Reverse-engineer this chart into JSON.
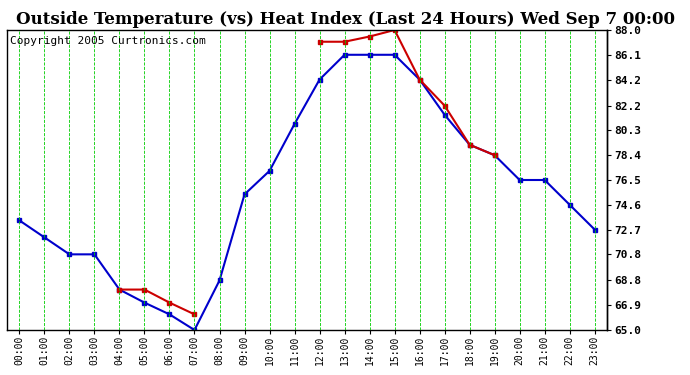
{
  "title": "Outside Temperature (vs) Heat Index (Last 24 Hours) Wed Sep 7 00:00",
  "copyright_text": "Copyright 2005 Curtronics.com",
  "x_labels": [
    "00:00",
    "01:00",
    "02:00",
    "03:00",
    "04:00",
    "05:00",
    "06:00",
    "07:00",
    "08:00",
    "09:00",
    "10:00",
    "11:00",
    "12:00",
    "13:00",
    "14:00",
    "15:00",
    "16:00",
    "17:00",
    "18:00",
    "19:00",
    "20:00",
    "21:00",
    "22:00",
    "23:00"
  ],
  "y_min": 65.0,
  "y_max": 88.0,
  "y_ticks": [
    65.0,
    66.9,
    68.8,
    70.8,
    72.7,
    74.6,
    76.5,
    78.4,
    80.3,
    82.2,
    84.2,
    86.1,
    88.0
  ],
  "blue_data": [
    73.4,
    72.1,
    70.8,
    70.8,
    68.1,
    67.1,
    66.2,
    65.0,
    68.8,
    75.4,
    77.2,
    80.8,
    84.2,
    86.1,
    86.1,
    86.1,
    84.2,
    81.5,
    79.2,
    78.4,
    76.5,
    76.5,
    74.6,
    72.7
  ],
  "red_data": [
    null,
    null,
    null,
    null,
    68.1,
    68.1,
    67.1,
    66.2,
    null,
    null,
    null,
    null,
    87.1,
    87.1,
    87.5,
    88.0,
    84.2,
    82.2,
    79.2,
    78.4,
    null,
    null,
    null,
    null
  ],
  "blue_color": "#0000cc",
  "red_color": "#cc0000",
  "bg_color": "#ffffff",
  "grid_color": "#00cc00",
  "title_fontsize": 12,
  "copyright_fontsize": 8
}
